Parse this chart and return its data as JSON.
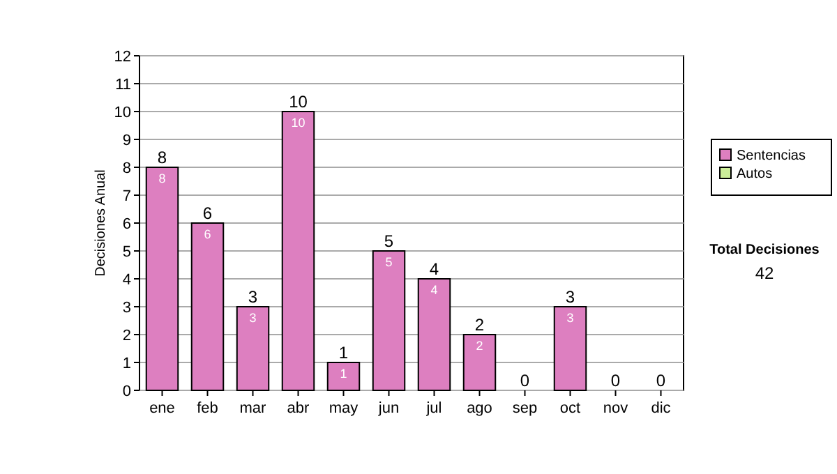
{
  "chart_data": {
    "type": "bar",
    "ylabel": "Decisiones Anual",
    "categories": [
      "ene",
      "feb",
      "mar",
      "abr",
      "may",
      "jun",
      "jul",
      "ago",
      "sep",
      "oct",
      "nov",
      "dic"
    ],
    "series": [
      {
        "name": "Sentencias",
        "color": "#dd7fc0",
        "values": [
          8,
          6,
          3,
          10,
          1,
          5,
          4,
          2,
          0,
          3,
          0,
          0
        ],
        "value_labels": [
          "8",
          "6",
          "3",
          "10",
          "1",
          "5",
          "4",
          "2",
          null,
          "3",
          null,
          null
        ]
      },
      {
        "name": "Autos",
        "color": "#ccee99",
        "values": [
          0,
          0,
          0,
          0,
          0,
          0,
          0,
          0,
          0,
          0,
          0,
          0
        ]
      }
    ],
    "stacked": true,
    "totals": [
      "8",
      "6",
      "3",
      "10",
      "1",
      "5",
      "4",
      "2",
      "0",
      "3",
      "0",
      "0"
    ],
    "ylim": [
      0,
      12
    ],
    "yticks": [
      0,
      1,
      2,
      3,
      4,
      5,
      6,
      7,
      8,
      9,
      10,
      11,
      12
    ],
    "grid": "y",
    "legend": "right",
    "annotations": [
      "Total Decisiones",
      "42"
    ]
  }
}
